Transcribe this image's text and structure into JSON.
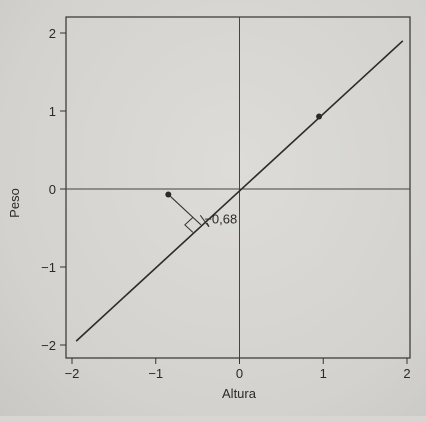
{
  "chart_data": {
    "type": "scatter",
    "title": "",
    "xlabel": "Altura",
    "ylabel": "Peso",
    "xlim": [
      -2,
      2
    ],
    "ylim": [
      -2,
      2
    ],
    "x_ticks": [
      -2,
      -1,
      0,
      1,
      2
    ],
    "y_ticks": [
      -2,
      -1,
      0,
      1,
      2
    ],
    "x_tick_labels": [
      "−2",
      "−1",
      "0",
      "1",
      "2"
    ],
    "y_tick_labels": [
      "−2",
      "−1",
      "0",
      "1",
      "2"
    ],
    "grid": false,
    "reference_lines": {
      "x0": true,
      "y0": true
    },
    "regression_line": {
      "x": [
        -1.95,
        1.95
      ],
      "y": [
        -1.95,
        1.9
      ]
    },
    "points": [
      {
        "x": -0.85,
        "y": -0.07
      },
      {
        "x": 0.95,
        "y": 0.93
      }
    ],
    "projection": {
      "from": {
        "x": -0.85,
        "y": -0.07
      },
      "to": {
        "x": -0.46,
        "y": -0.46
      }
    },
    "annotation": {
      "text": "−0,68",
      "x": -0.42,
      "y": -0.44
    }
  }
}
